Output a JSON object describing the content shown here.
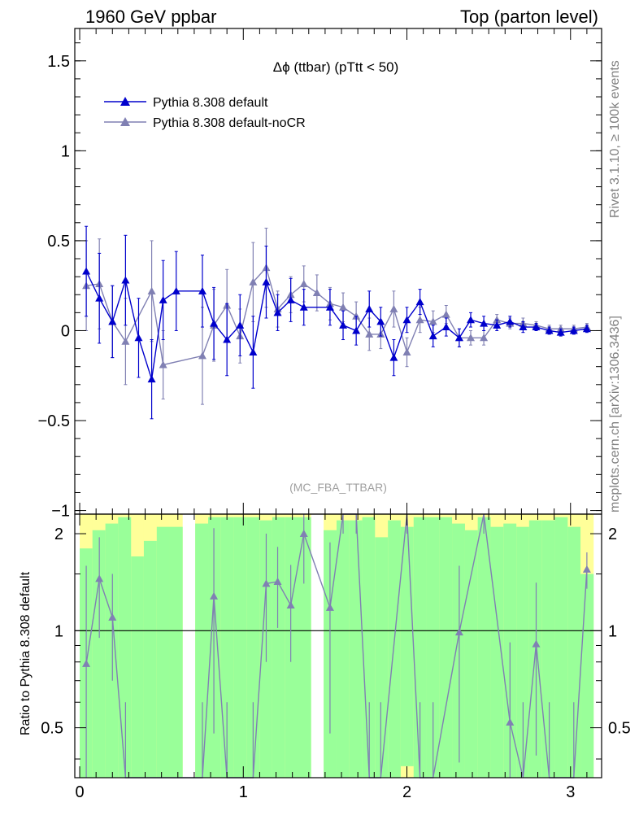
{
  "header": {
    "left": "1960 GeV ppbar",
    "right": "Top (parton level)"
  },
  "side_labels": {
    "rivet": "Rivet 3.1.10, ≥ 100k events",
    "mcplots": "mcplots.cern.ch [arXiv:1306.3436]"
  },
  "colors": {
    "series1": "#0000cc",
    "series2": "#8080b3",
    "band_green": "#99ff99",
    "band_yellow": "#ffff99"
  },
  "chart_data": [
    {
      "type": "line",
      "title": "Δϕ (ttbar) (pTtt < 50)",
      "analysis_label": "(MC_FBA_TTBAR)",
      "xlim": [
        -0.03,
        3.19
      ],
      "ylim": [
        -1.02,
        1.68
      ],
      "yticks": [
        -1,
        -0.5,
        0,
        0.5,
        1,
        1.5
      ],
      "ytick_labels": [
        "−1",
        "−0.5",
        "0",
        "0.5",
        "1",
        "1.5"
      ],
      "legend_position": "top-left",
      "series": [
        {
          "name": "Pythia 8.308 default",
          "x": [
            0.04,
            0.12,
            0.2,
            0.28,
            0.36,
            0.44,
            0.51,
            0.59,
            0.75,
            0.82,
            0.9,
            0.98,
            1.06,
            1.14,
            1.21,
            1.29,
            1.37,
            1.53,
            1.61,
            1.69,
            1.77,
            1.84,
            1.92,
            2.0,
            2.08,
            2.16,
            2.24,
            2.32,
            2.39,
            2.47,
            2.55,
            2.63,
            2.71,
            2.79,
            2.87,
            2.94,
            3.02,
            3.1
          ],
          "y": [
            0.33,
            0.18,
            0.05,
            0.28,
            -0.04,
            -0.27,
            0.17,
            0.22,
            0.22,
            0.04,
            -0.05,
            0.03,
            -0.12,
            0.27,
            0.1,
            0.17,
            0.13,
            0.13,
            0.03,
            0.0,
            0.12,
            0.05,
            -0.15,
            0.06,
            0.16,
            -0.03,
            0.02,
            -0.04,
            0.06,
            0.04,
            0.03,
            0.05,
            0.02,
            0.02,
            0.0,
            -0.01,
            0.0,
            0.01
          ],
          "err": [
            0.25,
            0.25,
            0.2,
            0.25,
            0.22,
            0.22,
            0.22,
            0.22,
            0.2,
            0.2,
            0.2,
            0.17,
            0.2,
            0.2,
            0.1,
            0.12,
            0.1,
            0.1,
            0.08,
            0.08,
            0.1,
            0.08,
            0.1,
            0.07,
            0.07,
            0.06,
            0.05,
            0.05,
            0.04,
            0.04,
            0.03,
            0.03,
            0.03,
            0.02,
            0.02,
            0.02,
            0.02,
            0.02
          ]
        },
        {
          "name": "Pythia 8.308 default-noCR",
          "x": [
            0.04,
            0.12,
            0.2,
            0.28,
            0.44,
            0.51,
            0.75,
            0.82,
            0.9,
            0.98,
            1.06,
            1.14,
            1.21,
            1.29,
            1.37,
            1.45,
            1.53,
            1.61,
            1.69,
            1.77,
            1.84,
            1.92,
            2.0,
            2.08,
            2.16,
            2.24,
            2.32,
            2.39,
            2.47,
            2.55,
            2.63,
            2.71,
            2.79,
            2.87,
            2.94,
            3.02,
            3.1
          ],
          "y": [
            0.25,
            0.26,
            0.05,
            -0.06,
            0.22,
            -0.19,
            -0.14,
            0.03,
            0.14,
            -0.03,
            0.27,
            0.35,
            0.12,
            0.2,
            0.26,
            0.21,
            0.15,
            0.13,
            0.08,
            -0.02,
            -0.02,
            0.12,
            -0.12,
            0.06,
            0.05,
            0.09,
            -0.04,
            -0.04,
            -0.04,
            0.06,
            0.04,
            0.04,
            0.03,
            0.01,
            0.01,
            0.01,
            0.02
          ],
          "err": [
            0.25,
            0.25,
            0.2,
            0.24,
            0.28,
            0.19,
            0.27,
            0.2,
            0.2,
            0.15,
            0.22,
            0.22,
            0.1,
            0.1,
            0.1,
            0.1,
            0.09,
            0.08,
            0.08,
            0.09,
            0.08,
            0.1,
            0.08,
            0.07,
            0.06,
            0.05,
            0.05,
            0.04,
            0.04,
            0.03,
            0.03,
            0.03,
            0.02,
            0.02,
            0.02,
            0.02,
            0.02
          ]
        }
      ]
    },
    {
      "type": "line",
      "ylabel": "Ratio to Pythia 8.308 default",
      "xlim": [
        -0.03,
        3.19
      ],
      "ylim": [
        0.35,
        2.3
      ],
      "scale": "log",
      "xticks": [
        0,
        1,
        2,
        3
      ],
      "xtick_labels": [
        "0",
        "1",
        "2",
        "3"
      ],
      "yticks": [
        0.5,
        1,
        2
      ],
      "ytick_labels": [
        "0.5",
        "1",
        "2"
      ],
      "bins": [
        0.0,
        0.078,
        0.157,
        0.235,
        0.314,
        0.392,
        0.471,
        0.549,
        0.628,
        0.706,
        0.785,
        0.863,
        0.942,
        1.02,
        1.099,
        1.177,
        1.256,
        1.334,
        1.413,
        1.491,
        1.57,
        1.648,
        1.727,
        1.805,
        1.884,
        1.962,
        2.041,
        2.119,
        2.198,
        2.276,
        2.355,
        2.433,
        2.512,
        2.59,
        2.669,
        2.747,
        2.826,
        2.904,
        2.983,
        3.061,
        3.14
      ],
      "band_green": [
        [
          0.35,
          1.8
        ],
        [
          0.35,
          2.05
        ],
        [
          0.35,
          2.15
        ],
        [
          0.35,
          2.25
        ],
        [
          0.35,
          1.7
        ],
        [
          0.35,
          1.9
        ],
        [
          0.35,
          2.1
        ],
        [
          0.35,
          2.1
        ],
        [
          null,
          null
        ],
        [
          0.35,
          2.15
        ],
        [
          0.35,
          2.25
        ],
        [
          0.35,
          2.25
        ],
        [
          0.35,
          2.25
        ],
        [
          0.35,
          2.25
        ],
        [
          0.35,
          2.2
        ],
        [
          0.35,
          2.25
        ],
        [
          0.35,
          2.25
        ],
        [
          0.35,
          2.25
        ],
        [
          null,
          null
        ],
        [
          0.35,
          2.05
        ],
        [
          0.35,
          2.2
        ],
        [
          0.35,
          2.2
        ],
        [
          0.35,
          2.25
        ],
        [
          0.35,
          1.95
        ],
        [
          0.35,
          2.2
        ],
        [
          0.38,
          2.1
        ],
        [
          0.35,
          2.25
        ],
        [
          0.35,
          2.25
        ],
        [
          0.35,
          2.25
        ],
        [
          0.35,
          2.15
        ],
        [
          0.35,
          2.05
        ],
        [
          0.35,
          2.25
        ],
        [
          0.35,
          2.1
        ],
        [
          0.35,
          2.15
        ],
        [
          0.35,
          2.1
        ],
        [
          0.35,
          2.2
        ],
        [
          0.35,
          2.2
        ],
        [
          0.35,
          2.25
        ],
        [
          0.35,
          2.1
        ],
        [
          0.35,
          1.5
        ]
      ],
      "band_yellow": [
        [
          0.35,
          2.3
        ],
        [
          0.35,
          2.3
        ],
        [
          0.35,
          2.3
        ],
        [
          0.35,
          2.3
        ],
        [
          0.35,
          2.3
        ],
        [
          0.35,
          2.3
        ],
        [
          0.35,
          2.3
        ],
        [
          0.35,
          2.3
        ],
        [
          null,
          null
        ],
        [
          0.35,
          2.3
        ],
        [
          0.35,
          2.3
        ],
        [
          0.35,
          2.3
        ],
        [
          0.35,
          2.3
        ],
        [
          0.35,
          2.3
        ],
        [
          0.35,
          2.3
        ],
        [
          0.35,
          2.3
        ],
        [
          0.35,
          2.3
        ],
        [
          0.35,
          2.3
        ],
        [
          null,
          null
        ],
        [
          0.35,
          2.3
        ],
        [
          0.35,
          2.3
        ],
        [
          0.35,
          2.3
        ],
        [
          0.35,
          2.3
        ],
        [
          0.35,
          2.3
        ],
        [
          0.35,
          2.3
        ],
        [
          0.35,
          2.3
        ],
        [
          0.35,
          2.3
        ],
        [
          0.35,
          2.3
        ],
        [
          0.35,
          2.3
        ],
        [
          0.35,
          2.3
        ],
        [
          0.35,
          2.3
        ],
        [
          0.35,
          2.3
        ],
        [
          0.35,
          2.3
        ],
        [
          0.35,
          2.3
        ],
        [
          0.35,
          2.3
        ],
        [
          0.35,
          2.3
        ],
        [
          0.35,
          2.3
        ],
        [
          0.35,
          2.3
        ],
        [
          0.35,
          2.3
        ],
        [
          0.35,
          2.3
        ]
      ],
      "series": [
        {
          "name": "Pythia 8.308 default-noCR",
          "x": [
            0.04,
            0.12,
            0.2,
            0.28,
            0.75,
            0.82,
            0.9,
            1.06,
            1.14,
            1.21,
            1.29,
            1.37,
            1.53,
            1.61,
            1.69,
            1.77,
            1.84,
            2.0,
            2.08,
            2.16,
            2.32,
            2.47,
            2.63,
            2.71,
            2.79,
            2.87,
            3.02,
            3.1
          ],
          "y": [
            0.79,
            1.45,
            1.1,
            0.3,
            0.3,
            1.28,
            0.3,
            0.3,
            1.4,
            1.42,
            1.2,
            2.0,
            1.18,
            3.0,
            3.0,
            0.3,
            0.3,
            3.0,
            0.3,
            0.3,
            0.99,
            3.0,
            0.52,
            0.3,
            0.91,
            0.3,
            0.3,
            1.55
          ],
          "err": [
            0.8,
            0.5,
            0.4,
            0.3,
            0.3,
            0.8,
            0.3,
            0.3,
            0.6,
            0.4,
            0.4,
            0.6,
            0.7,
            1.0,
            1.0,
            0.3,
            0.3,
            1.0,
            0.3,
            0.3,
            0.6,
            1.0,
            0.4,
            0.3,
            0.5,
            0.3,
            0.3,
            0.2
          ]
        }
      ]
    }
  ]
}
